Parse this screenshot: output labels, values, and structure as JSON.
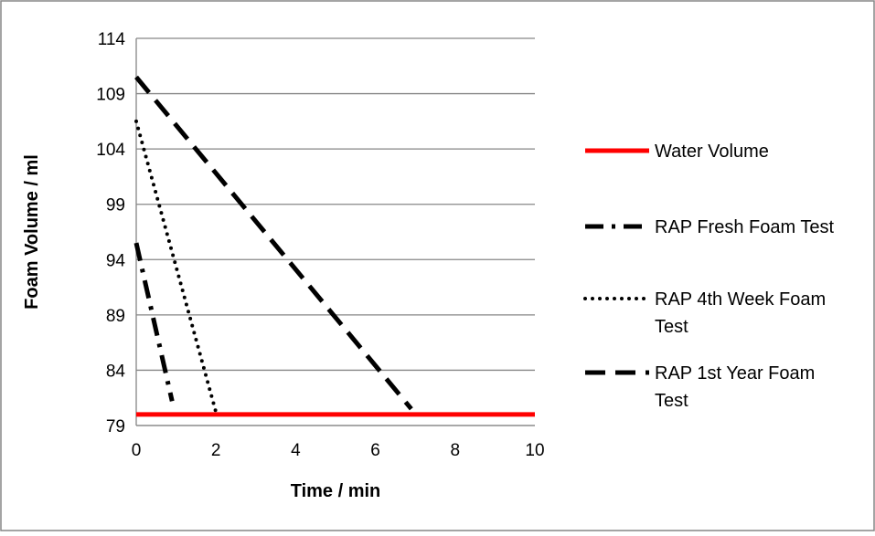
{
  "chart_data": {
    "type": "line",
    "xlabel": "Time / min",
    "ylabel": "Foam Volume / ml",
    "xlim": [
      0,
      10
    ],
    "ylim": [
      79,
      114
    ],
    "xticks": [
      0,
      2,
      4,
      6,
      8,
      10
    ],
    "yticks": [
      79,
      84,
      89,
      94,
      99,
      104,
      109,
      114
    ],
    "grid": "horizontal major gridlines",
    "legend_position": "right",
    "series": [
      {
        "name": "Water Volume",
        "line_style": "solid",
        "color": "#ff0000",
        "x": [
          0,
          10
        ],
        "y": [
          80,
          80
        ]
      },
      {
        "name": "RAP Fresh Foam Test",
        "line_style": "long-dash-dot",
        "color": "#000000",
        "x": [
          0,
          0.9
        ],
        "y": [
          95.5,
          81.2
        ]
      },
      {
        "name": "RAP 4th Week Foam Test",
        "line_style": "round-dot",
        "color": "#000000",
        "x": [
          0,
          2
        ],
        "y": [
          106.5,
          80.2
        ]
      },
      {
        "name": "RAP 1st Year Foam Test",
        "line_style": "long-dash",
        "color": "#000000",
        "x": [
          0,
          6.9
        ],
        "y": [
          110.5,
          80.5
        ]
      }
    ]
  }
}
